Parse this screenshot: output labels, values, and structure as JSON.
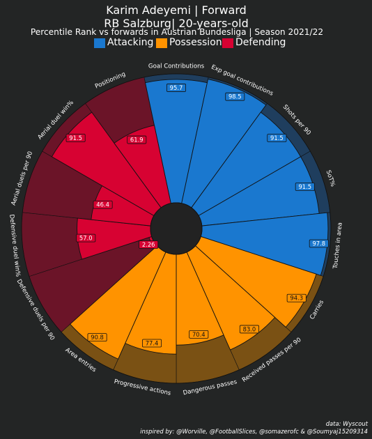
{
  "header": {
    "title_line1": "Karim Adeyemi | Forward",
    "title_line2": "RB Salzburg| 20-years-old",
    "subtitle": "Percentile Rank vs forwards in Austrian Bundesliga | Season 2021/22"
  },
  "footer": {
    "source": "data: Wyscout",
    "credits": "inspired by: @Worville, @FootballSlices, @somazerofc & @Soumyaj15209314"
  },
  "colors": {
    "background": "#232525",
    "attacking": "#1A78CF",
    "attacking_bg": "#1F3E5E",
    "possession": "#FF9300",
    "possession_bg": "#7A5114",
    "defending": "#D70232",
    "defending_bg": "#6B1428",
    "center": "#222222"
  },
  "chart_data": {
    "type": "pizza",
    "range": [
      0,
      100
    ],
    "legend": [
      {
        "name": "Attacking",
        "color": "#1A78CF"
      },
      {
        "name": "Possession",
        "color": "#FF9300"
      },
      {
        "name": "Defending",
        "color": "#D70232"
      }
    ],
    "params": [
      {
        "label": "Goal Contributions",
        "value": 95.7,
        "value_label": "95.7",
        "group": "attacking"
      },
      {
        "label": "Exp goal contributions",
        "value": 98.5,
        "value_label": "98.5",
        "group": "attacking"
      },
      {
        "label": "Shots per 90",
        "value": 91.5,
        "value_label": "91.5",
        "group": "attacking"
      },
      {
        "label": "SoT%",
        "value": 91.5,
        "value_label": "91.5",
        "group": "attacking"
      },
      {
        "label": "Touches in area",
        "value": 97.8,
        "value_label": "97.8",
        "group": "attacking"
      },
      {
        "label": "Carries",
        "value": 94.3,
        "value_label": "94.3",
        "group": "possession"
      },
      {
        "label": "Received passes per 90",
        "value": 83.0,
        "value_label": "83.0",
        "group": "possession"
      },
      {
        "label": "Dangerous passes",
        "value": 70.4,
        "value_label": "70.4",
        "group": "possession"
      },
      {
        "label": "Progressive actions",
        "value": 77.4,
        "value_label": "77.4",
        "group": "possession"
      },
      {
        "label": "Area entries",
        "value": 90.8,
        "value_label": "90.8",
        "group": "possession"
      },
      {
        "label": "Defensive duels per 90",
        "value": 2.26,
        "value_label": "2.26",
        "group": "defending"
      },
      {
        "label": "Defensive duel win%",
        "value": 57.0,
        "value_label": "57.0",
        "group": "defending"
      },
      {
        "label": "Aerial duels per 90",
        "value": 46.4,
        "value_label": "46.4",
        "group": "defending"
      },
      {
        "label": "Aerial duel win%",
        "value": 91.5,
        "value_label": "91.5",
        "group": "defending"
      },
      {
        "label": "Positioning",
        "value": 61.9,
        "value_label": "61.9",
        "group": "defending"
      }
    ]
  }
}
